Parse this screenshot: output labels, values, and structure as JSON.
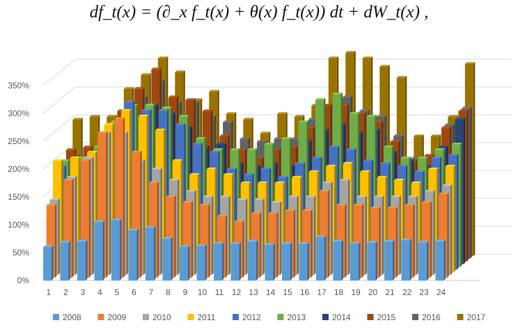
{
  "equation": "df_t(x) = (∂_x f_t(x) + θ(x) f_t(x)) dt + dW_t(x) ,",
  "chart_data": {
    "type": "bar",
    "subtype": "3d-clustered",
    "title": "",
    "xlabel": "",
    "ylabel": "",
    "ylim": [
      0,
      350
    ],
    "y_ticks": [
      "0%",
      "50%",
      "100%",
      "150%",
      "200%",
      "250%",
      "300%",
      "350%"
    ],
    "grid": true,
    "legend_position": "bottom",
    "categories": [
      "1",
      "2",
      "3",
      "4",
      "5",
      "6",
      "7",
      "8",
      "9",
      "10",
      "11",
      "12",
      "13",
      "14",
      "15",
      "16",
      "17",
      "18",
      "19",
      "20",
      "21",
      "22",
      "23",
      "24"
    ],
    "series": [
      {
        "name": "2008",
        "color": "#5B9BD5",
        "values": [
          60,
          68,
          70,
          105,
          108,
          90,
          95,
          75,
          60,
          62,
          66,
          66,
          70,
          64,
          66,
          66,
          78,
          70,
          66,
          68,
          70,
          72,
          68,
          70
        ]
      },
      {
        "name": "2009",
        "color": "#ED7D31",
        "values": [
          130,
          175,
          210,
          260,
          285,
          225,
          170,
          145,
          135,
          130,
          110,
          100,
          115,
          115,
          120,
          120,
          155,
          130,
          130,
          125,
          125,
          130,
          135,
          150
        ]
      },
      {
        "name": "2010",
        "color": "#A5A5A5",
        "values": [
          135,
          175,
          210,
          255,
          255,
          205,
          190,
          170,
          150,
          140,
          140,
          135,
          135,
          130,
          140,
          140,
          165,
          170,
          140,
          140,
          140,
          140,
          150,
          160
        ]
      },
      {
        "name": "2011",
        "color": "#FFC000",
        "values": [
          200,
          205,
          215,
          265,
          290,
          280,
          255,
          200,
          175,
          185,
          175,
          160,
          160,
          160,
          170,
          180,
          190,
          195,
          180,
          170,
          165,
          160,
          185,
          190
        ]
      },
      {
        "name": "2012",
        "color": "#4472C4",
        "values": [
          185,
          190,
          205,
          250,
          300,
          285,
          285,
          260,
          225,
          210,
          180,
          170,
          180,
          165,
          190,
          200,
          220,
          215,
          195,
          190,
          185,
          175,
          200,
          205
        ]
      },
      {
        "name": "2013",
        "color": "#70AD47",
        "values": [
          190,
          195,
          215,
          260,
          290,
          290,
          285,
          270,
          230,
          210,
          210,
          210,
          220,
          230,
          260,
          300,
          310,
          275,
          270,
          215,
          195,
          195,
          210,
          220
        ]
      },
      {
        "name": "2014",
        "color": "#264478",
        "values": [
          175,
          185,
          205,
          240,
          265,
          285,
          270,
          245,
          210,
          215,
          180,
          175,
          180,
          175,
          220,
          240,
          250,
          235,
          240,
          200,
          185,
          175,
          210,
          260
        ]
      },
      {
        "name": "2015",
        "color": "#9E480E",
        "values": [
          200,
          205,
          220,
          270,
          310,
          345,
          295,
          290,
          270,
          225,
          200,
          185,
          200,
          205,
          240,
          280,
          280,
          265,
          250,
          215,
          180,
          190,
          240,
          270
        ]
      },
      {
        "name": "2016",
        "color": "#636363",
        "values": [
          185,
          190,
          200,
          250,
          290,
          320,
          280,
          280,
          255,
          245,
          215,
          210,
          215,
          215,
          250,
          275,
          290,
          265,
          255,
          220,
          180,
          180,
          240,
          270
        ]
      },
      {
        "name": "2017",
        "color": "#997300",
        "values": [
          245,
          250,
          250,
          300,
          325,
          355,
          330,
          280,
          295,
          255,
          245,
          220,
          255,
          250,
          270,
          355,
          365,
          355,
          340,
          320,
          215,
          215,
          250,
          345
        ]
      }
    ]
  }
}
